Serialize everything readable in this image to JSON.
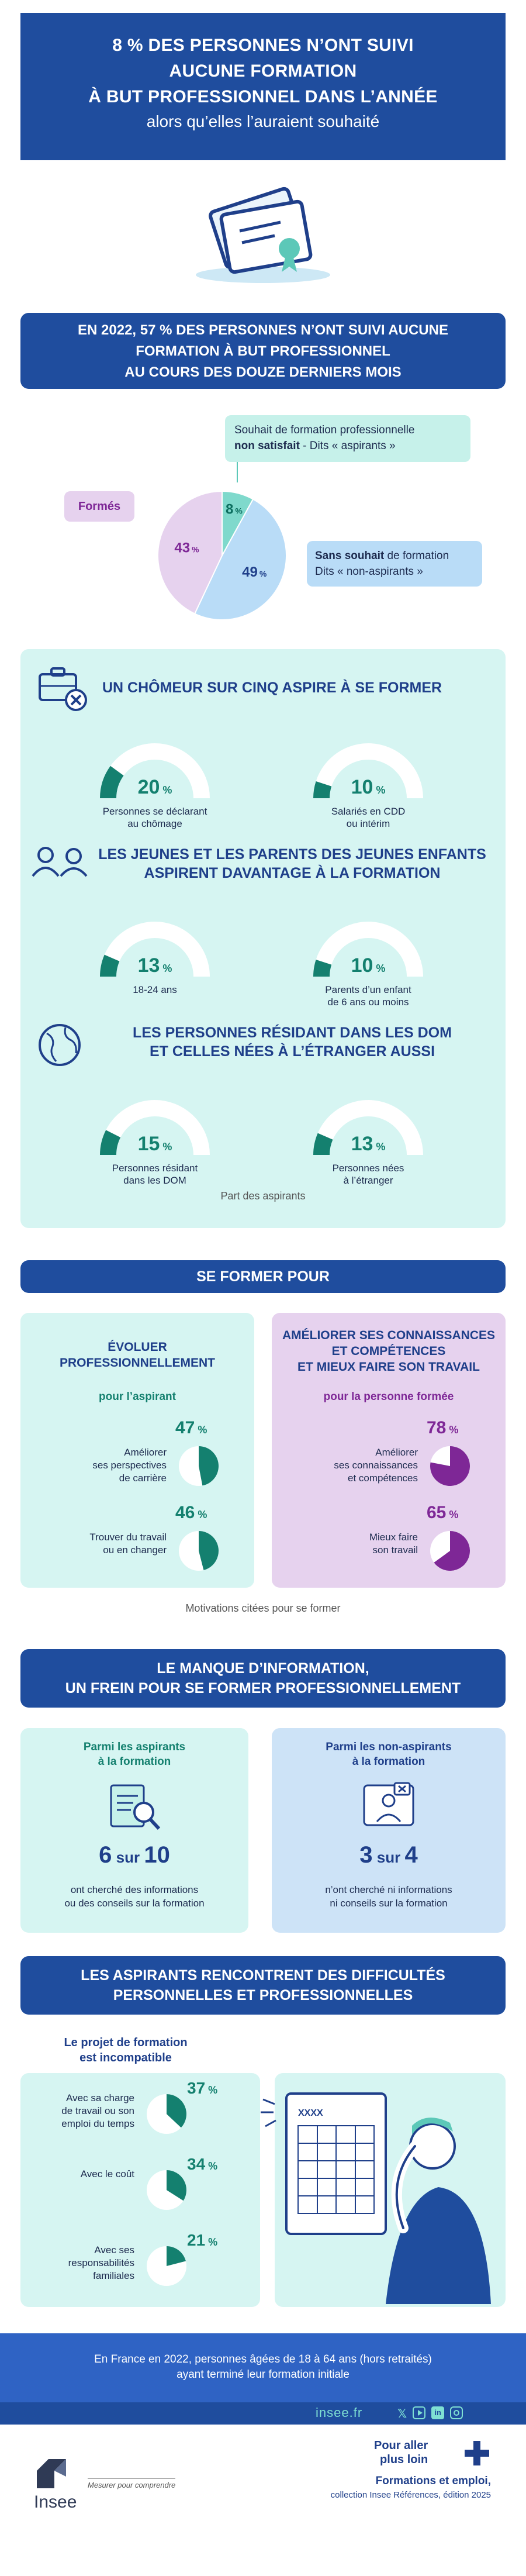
{
  "header": {
    "line1": "8 % DES PERSONNES N’ONT SUIVI",
    "line2": "AUCUNE FORMATION",
    "line3": "À BUT PROFESSIONNEL DANS L’ANNÉE",
    "line4": "alors qu’elles l’auraient souhaité"
  },
  "section1": {
    "banner_line1": "EN 2022, 57 % DES PERSONNES N’ONT SUIVI AUCUNE",
    "banner_line2": "FORMATION À BUT PROFESSIONNEL",
    "banner_line3": "AU COURS DES DOUZE DERNIERS MOIS",
    "callout_aspirants_1": "Souhait de formation professionnelle",
    "callout_aspirants_2a": "non satisfait",
    "callout_aspirants_2b": " - Dits « aspirants »",
    "callout_formes": "Formés",
    "callout_non_1a": "Sans souhait",
    "callout_non_1b": " de formation",
    "callout_non_2": "Dits « non-aspirants »",
    "pie": [
      {
        "label": "8",
        "value": 8,
        "color": "#7fd9cc"
      },
      {
        "label": "49",
        "value": 49,
        "color": "#b9dcf7"
      },
      {
        "label": "43",
        "value": 43,
        "color": "#e6d2ee"
      }
    ],
    "pct_sign": "%"
  },
  "section2": {
    "groups": [
      {
        "title_1": "UN CHÔMEUR SUR CINQ ASPIRE À SE FORMER",
        "title_2": "",
        "icon": "briefcase-icon",
        "gauges": [
          {
            "value": "20",
            "pct": 20,
            "caption_1": "Personnes se déclarant",
            "caption_2": "au chômage"
          },
          {
            "value": "10",
            "pct": 10,
            "caption_1": "Salariés en CDD",
            "caption_2": "ou intérim"
          }
        ]
      },
      {
        "title_1": "LES JEUNES ET LES PARENTS DES JEUNES ENFANTS",
        "title_2": "ASPIRENT DAVANTAGE À LA FORMATION",
        "icon": "people-icon",
        "gauges": [
          {
            "value": "13",
            "pct": 13,
            "caption_1": "18-24 ans",
            "caption_2": ""
          },
          {
            "value": "10",
            "pct": 10,
            "caption_1": "Parents d’un enfant",
            "caption_2": "de 6 ans ou moins"
          }
        ]
      },
      {
        "title_1": "LES PERSONNES RÉSIDANT DANS LES DOM",
        "title_2": "ET CELLES NÉES À L’ÉTRANGER AUSSI",
        "icon": "globe-icon",
        "gauges": [
          {
            "value": "15",
            "pct": 15,
            "caption_1": "Personnes résidant",
            "caption_2": "dans les DOM"
          },
          {
            "value": "13",
            "pct": 13,
            "caption_1": "Personnes nées",
            "caption_2": "à l’étranger"
          }
        ]
      }
    ],
    "footnote": "Part des aspirants"
  },
  "section3": {
    "banner": "SE FORMER POUR",
    "left": {
      "title_1": "ÉVOLUER",
      "title_2": "PROFESSIONNELLEMENT",
      "subtitle": "pour l’aspirant",
      "items": [
        {
          "value": "47",
          "pct": 47,
          "label_1": "Améliorer",
          "label_2": "ses perspectives",
          "label_3": "de carrière"
        },
        {
          "value": "46",
          "pct": 46,
          "label_1": "Trouver du travail",
          "label_2": "ou en changer",
          "label_3": ""
        }
      ]
    },
    "right": {
      "title_1": "AMÉLIORER SES CONNAISSANCES",
      "title_2": "ET COMPÉTENCES",
      "title_3": "ET MIEUX FAIRE SON TRAVAIL",
      "subtitle": "pour la personne formée",
      "items": [
        {
          "value": "78",
          "pct": 78,
          "label_1": "Améliorer",
          "label_2": "ses connaissances",
          "label_3": "et compétences"
        },
        {
          "value": "65",
          "pct": 65,
          "label_1": "Mieux faire",
          "label_2": "son travail",
          "label_3": ""
        }
      ]
    },
    "footnote": "Motivations citées pour se former"
  },
  "section4": {
    "banner_1": "LE MANQUE D’INFORMATION,",
    "banner_2": "UN FREIN POUR SE FORMER PROFESSIONNELLEMENT",
    "left": {
      "title_1": "Parmi les aspirants",
      "title_2": "à la formation",
      "big_a": "6",
      "big_sur": " sur ",
      "big_b": "10",
      "text_1": "ont cherché des informations",
      "text_2": "ou des conseils sur la formation"
    },
    "right": {
      "title_1": "Parmi les non-aspirants",
      "title_2": "à la formation",
      "big_a": "3",
      "big_sur": " sur ",
      "big_b": "4",
      "text_1": "n’ont cherché ni informations",
      "text_2": "ni conseils sur la formation"
    }
  },
  "section5": {
    "banner_1": "LES ASPIRANTS  RENCONTRENT DES DIFFICULTÉS",
    "banner_2": "PERSONNELLES ET PROFESSIONNELLES",
    "heading_1": "Le projet de formation",
    "heading_2": "est incompatible",
    "items": [
      {
        "value": "37",
        "pct": 37,
        "label_1": "Avec sa charge",
        "label_2": "de travail ou son",
        "label_3": "emploi du temps"
      },
      {
        "value": "34",
        "pct": 34,
        "label_1": "Avec le coût",
        "label_2": "",
        "label_3": ""
      },
      {
        "value": "21",
        "pct": 21,
        "label_1": "Avec ses",
        "label_2": "responsabilités",
        "label_3": "familiales"
      }
    ]
  },
  "footer": {
    "note_1": "En France en 2022, personnes âgées de 18 à 64 ans (hors retraités)",
    "note_2": "ayant terminé leur formation initiale",
    "site": "insee.fr",
    "logo_text": "Insee",
    "tagline": "Mesurer pour comprendre",
    "more_1": "Pour aller",
    "more_2": "plus loin",
    "pub_1": "Formations et emploi,",
    "pub_2": "collection Insee Références, édition 2025"
  }
}
